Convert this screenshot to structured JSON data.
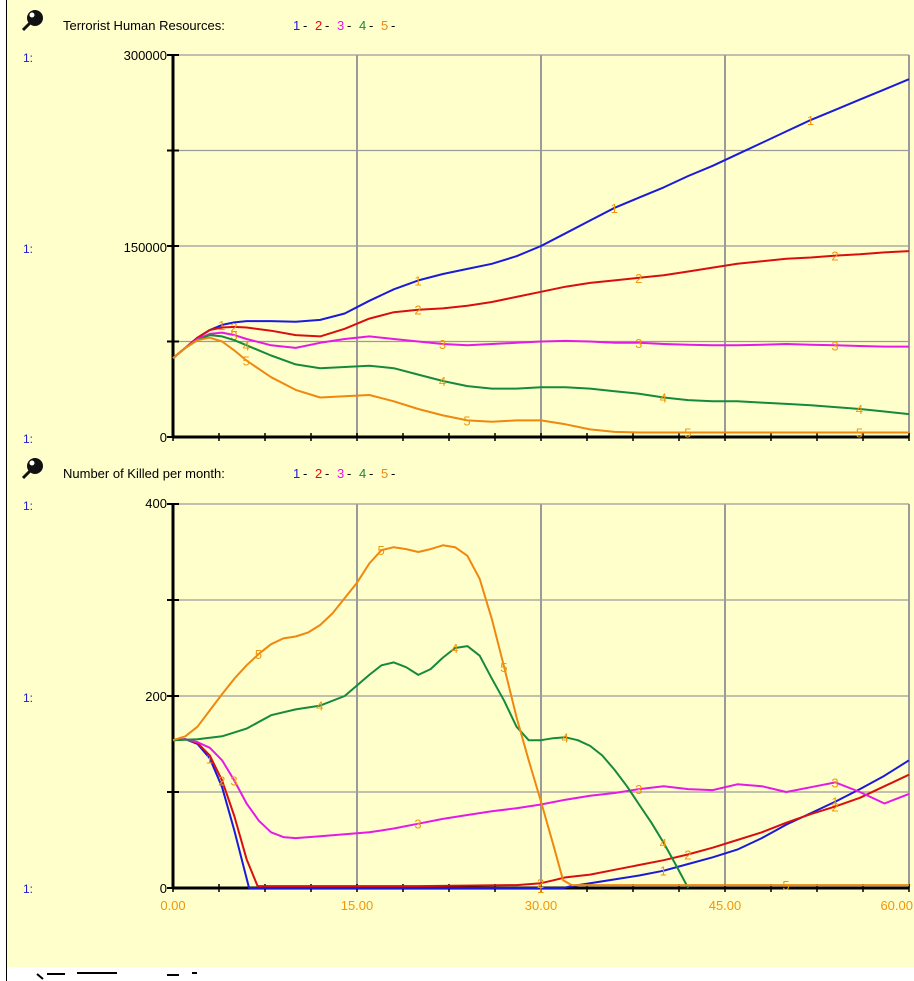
{
  "colors": {
    "background": "#ffffcc",
    "series": [
      "#1a1adb",
      "#d90f0f",
      "#e619e6",
      "#158a3c",
      "#f0870f"
    ],
    "grid": "#9a9a9a",
    "axis": "#000000"
  },
  "chart_data": [
    {
      "type": "line",
      "title": "Terrorist Human Resources:",
      "legend": [
        "1",
        "2",
        "3",
        "4",
        "5"
      ],
      "axis_scale_label": "1:",
      "yticks": [
        "300000",
        "150000",
        "0"
      ],
      "ylim": [
        0,
        300000
      ],
      "xlim": [
        0,
        60
      ],
      "grid": true,
      "x": [
        0,
        1,
        2,
        3,
        4,
        5,
        6,
        8,
        10,
        12,
        14,
        16,
        18,
        20,
        22,
        24,
        26,
        28,
        30,
        32,
        34,
        36,
        38,
        40,
        42,
        44,
        46,
        48,
        50,
        52,
        54,
        56,
        58,
        60
      ],
      "series": [
        {
          "name": "1",
          "values": [
            62000,
            70000,
            78000,
            84000,
            88000,
            90000,
            91000,
            91000,
            90500,
            92000,
            97000,
            107000,
            116000,
            123000,
            128000,
            132000,
            136000,
            142000,
            150000,
            160000,
            170000,
            180000,
            188000,
            196000,
            205000,
            213000,
            222000,
            231000,
            240000,
            249000,
            257000,
            265000,
            273000,
            281000
          ]
        },
        {
          "name": "2",
          "values": [
            62000,
            70000,
            78000,
            84000,
            86000,
            86500,
            86000,
            83500,
            80000,
            79000,
            85000,
            93000,
            98000,
            100000,
            101000,
            103000,
            106000,
            110000,
            114000,
            118000,
            121000,
            123000,
            125000,
            127000,
            130000,
            133000,
            136000,
            138000,
            140000,
            141000,
            142500,
            143500,
            145000,
            146000
          ]
        },
        {
          "name": "3",
          "values": [
            62000,
            70000,
            77000,
            81000,
            82000,
            80000,
            77000,
            72000,
            70000,
            74000,
            77000,
            79000,
            77000,
            75000,
            73000,
            72000,
            73000,
            74000,
            75000,
            75500,
            75000,
            74000,
            74000,
            73000,
            72500,
            72000,
            72000,
            72500,
            73000,
            72500,
            72000,
            71500,
            71000,
            71000
          ]
        },
        {
          "name": "4",
          "values": [
            62000,
            70000,
            76000,
            80000,
            79000,
            76000,
            72000,
            64000,
            57000,
            54000,
            55000,
            56000,
            54000,
            49000,
            44000,
            40000,
            38000,
            38000,
            39000,
            39000,
            38000,
            36000,
            34000,
            31000,
            29000,
            28000,
            28000,
            27000,
            26000,
            25000,
            23500,
            22000,
            20000,
            18000
          ]
        },
        {
          "name": "5",
          "values": [
            62000,
            70000,
            76000,
            78000,
            75000,
            68000,
            60000,
            47000,
            37000,
            31000,
            32000,
            33000,
            28000,
            22000,
            17000,
            13000,
            12000,
            13000,
            13000,
            10000,
            6000,
            4000,
            3500,
            3500,
            3500,
            3500,
            3500,
            3500,
            3500,
            3500,
            3500,
            3500,
            3500,
            3500
          ]
        }
      ]
    },
    {
      "type": "line",
      "title": "Number  of Killed per month:",
      "legend": [
        "1",
        "2",
        "3",
        "4",
        "5"
      ],
      "axis_scale_label": "1:",
      "yticks": [
        "400",
        "200",
        "0"
      ],
      "ylim": [
        0,
        400
      ],
      "xlim": [
        0,
        60
      ],
      "xticks": [
        "0.00",
        "15.00",
        "30.00",
        "45.00",
        "60.00"
      ],
      "grid": true,
      "series": [
        {
          "name": "1",
          "x": [
            0,
            1,
            2,
            3,
            4,
            5,
            6,
            6.2,
            10,
            20,
            28,
            30,
            31,
            31.8,
            32.5,
            34,
            36,
            38,
            40,
            42,
            44,
            46,
            48,
            50,
            52,
            54,
            56,
            58,
            60
          ],
          "values": [
            154,
            155,
            150,
            135,
            105,
            60,
            10,
            0,
            0,
            0,
            0,
            0,
            0,
            0,
            2,
            5,
            9,
            13,
            18,
            25,
            32,
            40,
            52,
            66,
            78,
            90,
            103,
            117,
            133
          ]
        },
        {
          "name": "2",
          "x": [
            0,
            1,
            2,
            3,
            4,
            5,
            6,
            6.9,
            10,
            20,
            28,
            30,
            31,
            32,
            34,
            36,
            38,
            40,
            42,
            44,
            46,
            48,
            50,
            52,
            54,
            56,
            58,
            60
          ],
          "values": [
            154,
            155,
            151,
            138,
            112,
            75,
            30,
            2,
            2,
            2,
            3,
            5,
            8,
            11,
            14,
            19,
            24,
            29,
            35,
            42,
            50,
            58,
            68,
            77,
            85,
            94,
            106,
            118
          ]
        },
        {
          "name": "3",
          "x": [
            0,
            1,
            2,
            3,
            4,
            5,
            6,
            7,
            8,
            9,
            10,
            12,
            14,
            16,
            18,
            20,
            22,
            24,
            26,
            28,
            30,
            32,
            34,
            36,
            38,
            40,
            42,
            44,
            46,
            48,
            50,
            52,
            54,
            56,
            58,
            60
          ],
          "values": [
            154,
            155,
            152,
            146,
            133,
            112,
            88,
            70,
            58,
            53,
            52,
            54,
            56,
            58,
            62,
            67,
            72,
            76,
            80,
            83,
            87,
            92,
            96,
            99,
            103,
            106,
            103,
            102,
            108,
            106,
            100,
            105,
            110,
            100,
            88,
            98
          ]
        },
        {
          "name": "4",
          "x": [
            0,
            2,
            4,
            6,
            8,
            10,
            12,
            14,
            16,
            17,
            18,
            19,
            20,
            21,
            22,
            23,
            24,
            25,
            26,
            27,
            28,
            29,
            30,
            31,
            32,
            33,
            34,
            35,
            36,
            37,
            38,
            39,
            40,
            41,
            42
          ],
          "values": [
            154,
            155,
            158,
            166,
            180,
            186,
            190,
            200,
            222,
            232,
            235,
            230,
            222,
            228,
            240,
            250,
            252,
            242,
            218,
            195,
            168,
            154,
            154,
            156,
            157,
            154,
            148,
            138,
            123,
            106,
            87,
            68,
            47,
            24,
            0
          ]
        },
        {
          "name": "5",
          "x": [
            0,
            1,
            2,
            3,
            4,
            5,
            6,
            7,
            8,
            9,
            10,
            11,
            12,
            13,
            14,
            15,
            16,
            17,
            18,
            19,
            20,
            21,
            22,
            23,
            24,
            25,
            26,
            27,
            28,
            29,
            30,
            31,
            31.8,
            32.5,
            35,
            40,
            45,
            50,
            55,
            60
          ],
          "values": [
            154,
            158,
            168,
            185,
            202,
            218,
            232,
            244,
            254,
            260,
            262,
            266,
            274,
            286,
            302,
            318,
            338,
            352,
            355,
            353,
            350,
            353,
            357,
            355,
            346,
            322,
            280,
            230,
            178,
            133,
            90,
            45,
            8,
            3,
            3,
            3,
            3,
            3,
            3,
            3
          ]
        }
      ]
    }
  ]
}
